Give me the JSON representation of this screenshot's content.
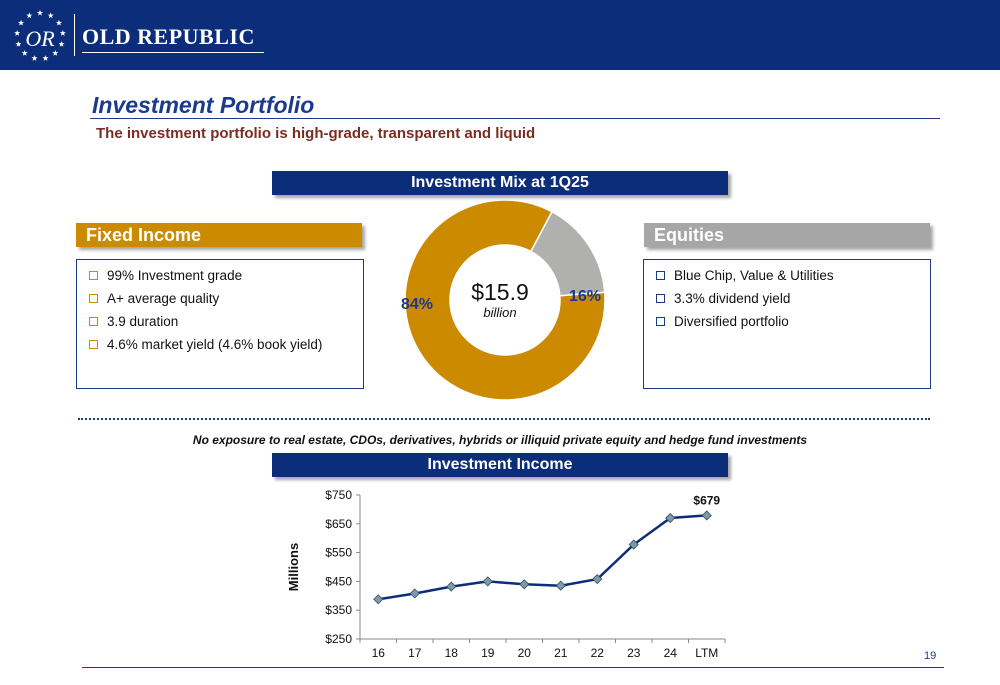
{
  "header": {
    "brand": "OLD REPUBLIC",
    "logo_monogram": "OR"
  },
  "slide": {
    "title": "Investment Portfolio",
    "subtitle": "The investment portfolio is high-grade, transparent and liquid",
    "page_number": "19"
  },
  "mix": {
    "banner": "Investment Mix at 1Q25",
    "total_value": "$15.9",
    "total_unit": "billion",
    "fixed_pct_label": "84%",
    "equity_pct_label": "16%"
  },
  "fixed_income": {
    "title": "Fixed Income",
    "items": [
      "99% Investment grade",
      "A+ average quality",
      "3.9 duration",
      "4.6% market yield (4.6% book yield)"
    ]
  },
  "equities": {
    "title": "Equities",
    "items": [
      "Blue Chip, Value & Utilities",
      "3.3% dividend yield",
      "Diversified portfolio"
    ]
  },
  "note": "No exposure to real estate, CDOs, derivatives, hybrids or illiquid private equity and hedge fund investments",
  "income": {
    "banner": "Investment Income"
  },
  "colors": {
    "navy": "#0b2d7a",
    "gold": "#cc8a00",
    "gray": "#a6a6a6",
    "marker": "#7f99a8"
  },
  "chart_data": [
    {
      "type": "pie",
      "title": "Investment Mix at 1Q25",
      "labels": [
        "Fixed Income",
        "Equities"
      ],
      "values": [
        84,
        16
      ],
      "colors": [
        "#cc8a00",
        "#b0b0ae"
      ]
    },
    {
      "type": "line",
      "title": "Investment Income",
      "categories": [
        "16",
        "17",
        "18",
        "19",
        "20",
        "21",
        "22",
        "23",
        "24",
        "LTM"
      ],
      "values": [
        388,
        408,
        432,
        450,
        440,
        435,
        458,
        578,
        670,
        679
      ],
      "ylabel": "Millions",
      "ylim": [
        250,
        750
      ],
      "yticks": [
        "$250",
        "$350",
        "$450",
        "$550",
        "$650",
        "$750"
      ],
      "ytick_values": [
        250,
        350,
        450,
        550,
        650,
        750
      ],
      "data_label": "$679"
    }
  ]
}
